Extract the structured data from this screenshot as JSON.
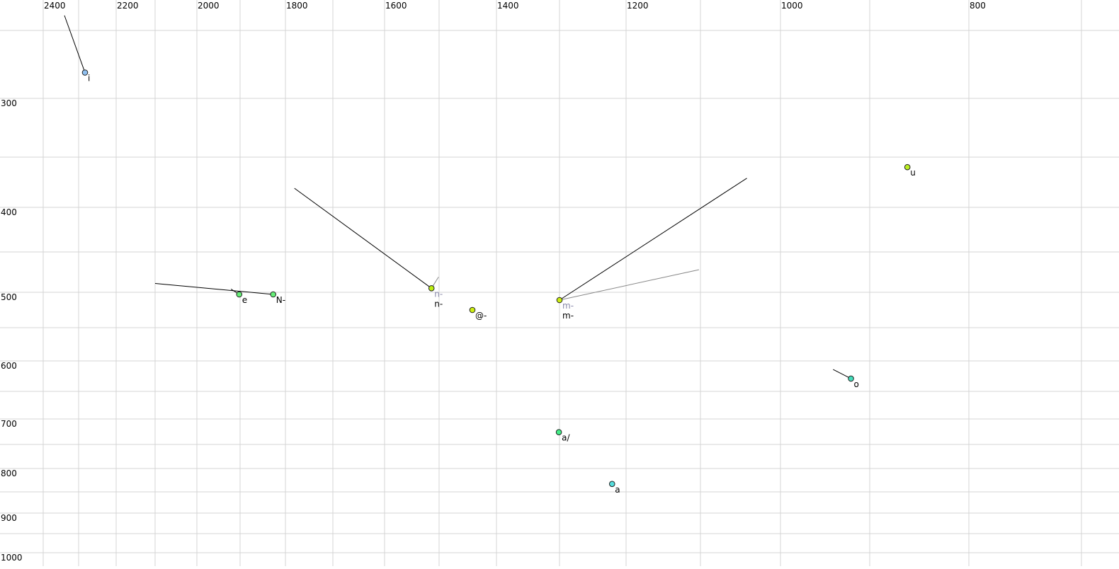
{
  "chart_data": {
    "type": "scatter",
    "title": "",
    "xlabel": "",
    "ylabel": "",
    "x_axis": {
      "position": "top",
      "reversed": true,
      "scale": "nonlinear (frequency-warped)",
      "range": [
        2430,
        700
      ],
      "tick_labels": [
        2400,
        2200,
        2000,
        1800,
        1600,
        1400,
        1200,
        1000,
        800
      ],
      "grid_step": 100
    },
    "y_axis": {
      "position": "left",
      "reversed": false,
      "scale": "nonlinear (frequency-warped)",
      "range": [
        230,
        1010
      ],
      "tick_labels": [
        300,
        400,
        500,
        600,
        700,
        800,
        900,
        1000
      ],
      "grid_step": 50
    },
    "grid": true,
    "points": [
      {
        "label": "i",
        "x": 2283,
        "y": 281,
        "color": "#8fbfef",
        "trail": [
          {
            "x": 2340,
            "y": 239,
            "color": "#000000"
          }
        ]
      },
      {
        "label": "e",
        "x": 1902,
        "y": 503,
        "color": "#66ee77",
        "trail": [
          {
            "x": 1921,
            "y": 496,
            "color": "#000000"
          }
        ]
      },
      {
        "label": "N-",
        "x": 1827,
        "y": 503,
        "color": "#66ee77",
        "trail": [
          {
            "x": 2100,
            "y": 489,
            "color": "#000000"
          }
        ]
      },
      {
        "label": "n-",
        "x": 1514,
        "y": 495,
        "color": "#bbee11",
        "ghost_label": "n-",
        "trail": [
          {
            "x": 1781,
            "y": 381,
            "color": "#000000"
          },
          {
            "x": 1501,
            "y": 481,
            "color": "#888888"
          }
        ]
      },
      {
        "label": "@-",
        "x": 1442,
        "y": 525,
        "color": "#ccee11",
        "trail": []
      },
      {
        "label": "m-",
        "x": 1300,
        "y": 511,
        "color": "#ccee11",
        "ghost_label": "m-",
        "trail": [
          {
            "x": 1042,
            "y": 371,
            "color": "#000000"
          },
          {
            "x": 1102,
            "y": 472,
            "color": "#888888"
          }
        ]
      },
      {
        "label": "u",
        "x": 862,
        "y": 360,
        "color": "#bbee22",
        "trail": []
      },
      {
        "label": "o",
        "x": 921,
        "y": 629,
        "color": "#44ddbb",
        "trail": [
          {
            "x": 941,
            "y": 614,
            "color": "#000000"
          }
        ]
      },
      {
        "label": "a/",
        "x": 1301,
        "y": 726,
        "color": "#44ee88",
        "trail": []
      },
      {
        "label": "a",
        "x": 1221,
        "y": 833,
        "color": "#55dddd",
        "trail": []
      }
    ]
  }
}
